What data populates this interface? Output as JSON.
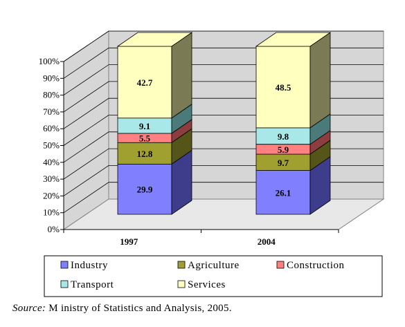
{
  "chart_data": {
    "type": "bar",
    "stacked": true,
    "percent_scale": true,
    "three_d": true,
    "categories": [
      "1997",
      "2004"
    ],
    "series": [
      {
        "name": "Industry",
        "values": [
          29.9,
          26.1
        ],
        "color": "#8080ff",
        "side_color": "#3d3d8c"
      },
      {
        "name": "Agriculture",
        "values": [
          12.8,
          9.7
        ],
        "color": "#a0a030",
        "side_color": "#55551a"
      },
      {
        "name": "Construction",
        "values": [
          5.5,
          5.9
        ],
        "color": "#ff8080",
        "side_color": "#8c3d3d"
      },
      {
        "name": "Transport",
        "values": [
          9.1,
          9.8
        ],
        "color": "#a8e8e8",
        "side_color": "#4a7a7a"
      },
      {
        "name": "Services",
        "values": [
          42.7,
          48.5
        ],
        "color": "#ffffc0",
        "side_color": "#7a7a55"
      }
    ],
    "y_ticks": [
      "0%",
      "10%",
      "20%",
      "30%",
      "40%",
      "50%",
      "60%",
      "70%",
      "80%",
      "90%",
      "100%"
    ],
    "ylim": [
      0,
      100
    ],
    "grid": true,
    "legend_position": "bottom"
  },
  "source": {
    "prefix": "Source:",
    "text": " M inistry of Statistics and Analysis, 2005."
  }
}
